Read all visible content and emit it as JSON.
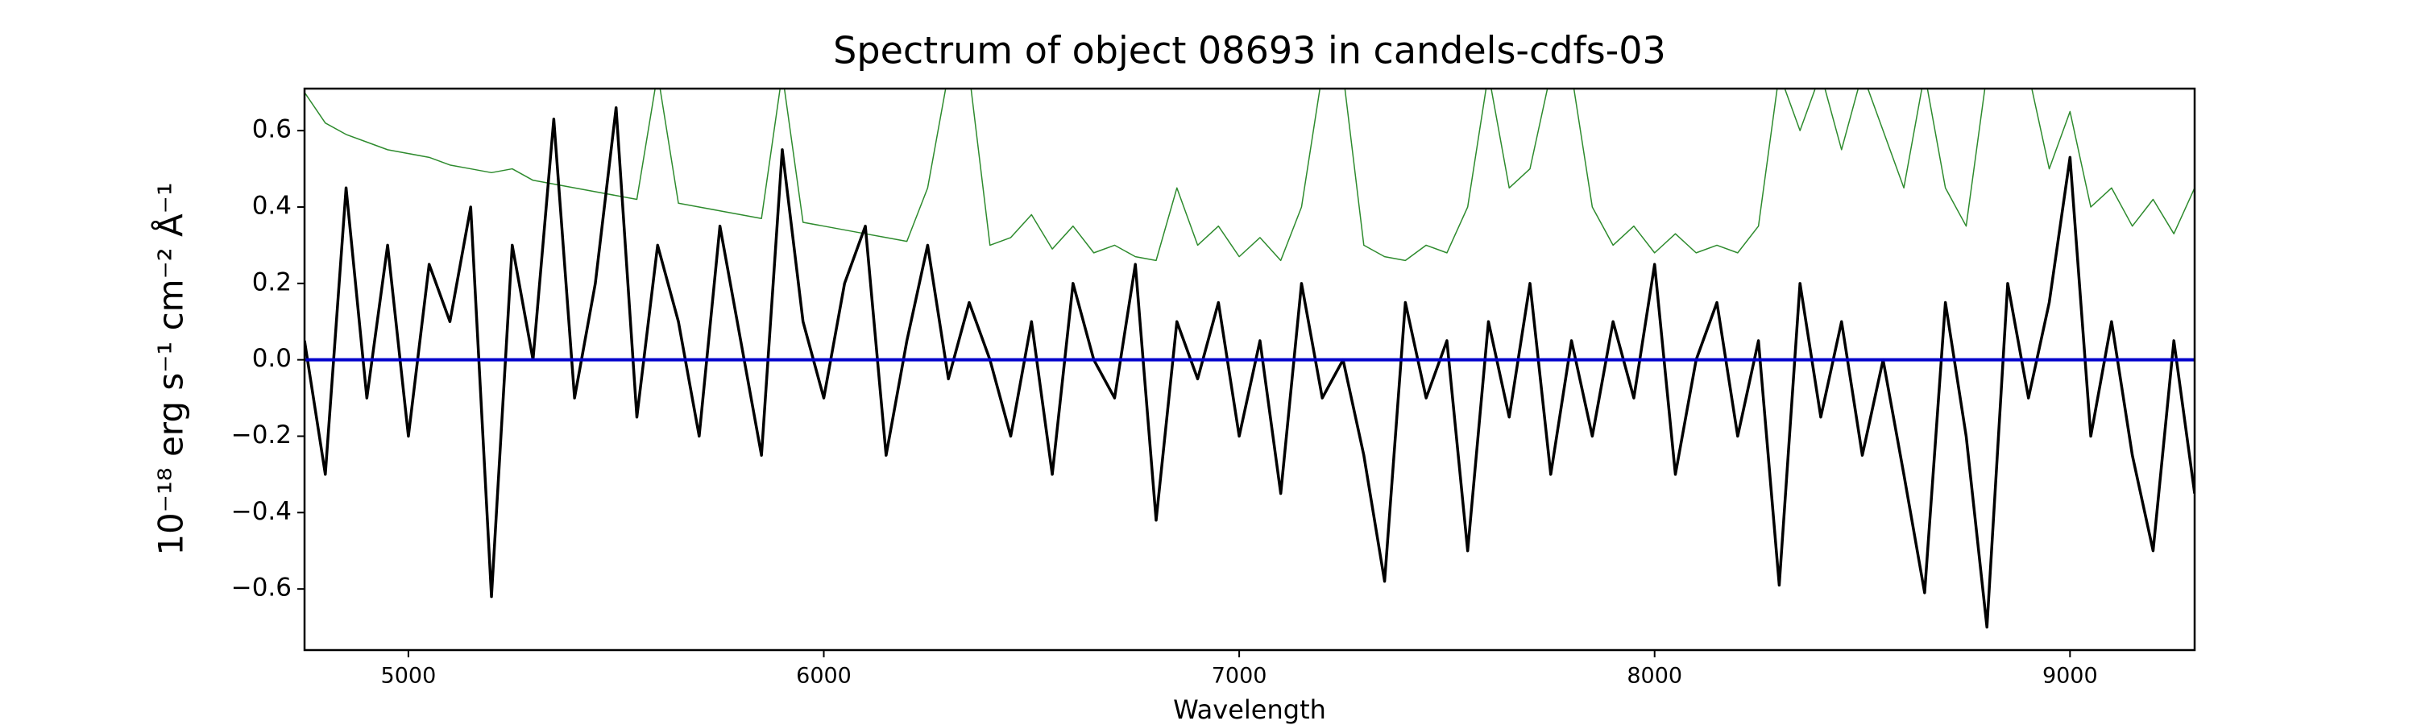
{
  "chart_data": {
    "type": "line",
    "title": "Spectrum of object 08693 in candels-cdfs-03",
    "xlabel": "Wavelength",
    "ylabel": "10⁻¹⁸ erg s⁻¹ cm⁻² Å⁻¹",
    "xlim": [
      4750,
      9300
    ],
    "ylim": [
      -0.76,
      0.71
    ],
    "xticks": [
      5000,
      6000,
      7000,
      8000,
      9000
    ],
    "yticks": [
      {
        "value": -0.6,
        "label": "−0.6"
      },
      {
        "value": -0.4,
        "label": "−0.4"
      },
      {
        "value": -0.2,
        "label": "−0.2"
      },
      {
        "value": 0,
        "label": "0.0"
      },
      0.2,
      0.4,
      0.6
    ],
    "x": [
      4750,
      4800,
      4850,
      4900,
      4950,
      5000,
      5050,
      5100,
      5150,
      5200,
      5250,
      5300,
      5350,
      5400,
      5450,
      5500,
      5550,
      5600,
      5650,
      5700,
      5750,
      5800,
      5850,
      5900,
      5950,
      6000,
      6050,
      6100,
      6150,
      6200,
      6250,
      6300,
      6350,
      6400,
      6450,
      6500,
      6550,
      6600,
      6650,
      6700,
      6750,
      6800,
      6850,
      6900,
      6950,
      7000,
      7050,
      7100,
      7150,
      7200,
      7250,
      7300,
      7350,
      7400,
      7450,
      7500,
      7550,
      7600,
      7650,
      7700,
      7750,
      7800,
      7850,
      7900,
      7950,
      8000,
      8050,
      8100,
      8150,
      8200,
      8250,
      8300,
      8350,
      8400,
      8450,
      8500,
      8550,
      8600,
      8650,
      8700,
      8750,
      8800,
      8850,
      8900,
      8950,
      9000,
      9050,
      9100,
      9150,
      9200,
      9250,
      9300
    ],
    "series": [
      {
        "color": "#2e8b2e",
        "width": 1.5,
        "values": [
          0.7,
          0.62,
          0.59,
          0.57,
          0.55,
          0.54,
          0.53,
          0.51,
          0.5,
          0.49,
          0.5,
          0.47,
          0.46,
          0.45,
          0.44,
          0.43,
          0.42,
          0.75,
          0.41,
          0.4,
          0.39,
          0.38,
          0.37,
          0.75,
          0.36,
          0.35,
          0.34,
          0.33,
          0.32,
          0.31,
          0.45,
          0.75,
          0.75,
          0.3,
          0.32,
          0.38,
          0.29,
          0.35,
          0.28,
          0.3,
          0.27,
          0.26,
          0.45,
          0.3,
          0.35,
          0.27,
          0.32,
          0.26,
          0.4,
          0.75,
          0.75,
          0.3,
          0.27,
          0.26,
          0.3,
          0.28,
          0.4,
          0.75,
          0.45,
          0.5,
          0.75,
          0.75,
          0.4,
          0.3,
          0.35,
          0.28,
          0.33,
          0.28,
          0.3,
          0.28,
          0.35,
          0.75,
          0.6,
          0.75,
          0.55,
          0.75,
          0.6,
          0.45,
          0.75,
          0.45,
          0.35,
          0.75,
          0.75,
          0.75,
          0.5,
          0.65,
          0.4,
          0.45,
          0.35,
          0.42,
          0.33,
          0.45
        ]
      },
      {
        "color": "#000000",
        "width": 3.5,
        "values": [
          0.05,
          -0.3,
          0.45,
          -0.1,
          0.3,
          -0.2,
          0.25,
          0.1,
          0.4,
          -0.62,
          0.3,
          0.0,
          0.63,
          -0.1,
          0.2,
          0.66,
          -0.15,
          0.3,
          0.1,
          -0.2,
          0.35,
          0.05,
          -0.25,
          0.55,
          0.1,
          -0.1,
          0.2,
          0.35,
          -0.25,
          0.05,
          0.3,
          -0.05,
          0.15,
          0.0,
          -0.2,
          0.1,
          -0.3,
          0.2,
          0.0,
          -0.1,
          0.25,
          -0.42,
          0.1,
          -0.05,
          0.15,
          -0.2,
          0.05,
          -0.35,
          0.2,
          -0.1,
          0.0,
          -0.25,
          -0.58,
          0.15,
          -0.1,
          0.05,
          -0.5,
          0.1,
          -0.15,
          0.2,
          -0.3,
          0.05,
          -0.2,
          0.1,
          -0.1,
          0.25,
          -0.3,
          0.0,
          0.15,
          -0.2,
          0.05,
          -0.59,
          0.2,
          -0.15,
          0.1,
          -0.25,
          0.0,
          -0.3,
          -0.61,
          0.15,
          -0.2,
          -0.7,
          0.2,
          -0.1,
          0.15,
          0.53,
          -0.2,
          0.1,
          -0.25,
          -0.5,
          0.05,
          -0.35
        ]
      },
      {
        "color": "#0000cc",
        "width": 4,
        "values": [
          0,
          0,
          0,
          0,
          0,
          0,
          0,
          0,
          0,
          0,
          0,
          0,
          0,
          0,
          0,
          0,
          0,
          0,
          0,
          0,
          0,
          0,
          0,
          0,
          0,
          0,
          0,
          0,
          0,
          0,
          0,
          0,
          0,
          0,
          0,
          0,
          0,
          0,
          0,
          0,
          0,
          0,
          0,
          0,
          0,
          0,
          0,
          0,
          0,
          0,
          0,
          0,
          0,
          0,
          0,
          0,
          0,
          0,
          0,
          0,
          0,
          0,
          0,
          0,
          0,
          0,
          0,
          0,
          0,
          0,
          0,
          0,
          0,
          0,
          0,
          0,
          0,
          0,
          0,
          0,
          0,
          0,
          0,
          0,
          0,
          0,
          0,
          0,
          0,
          0,
          0,
          0
        ]
      }
    ]
  }
}
